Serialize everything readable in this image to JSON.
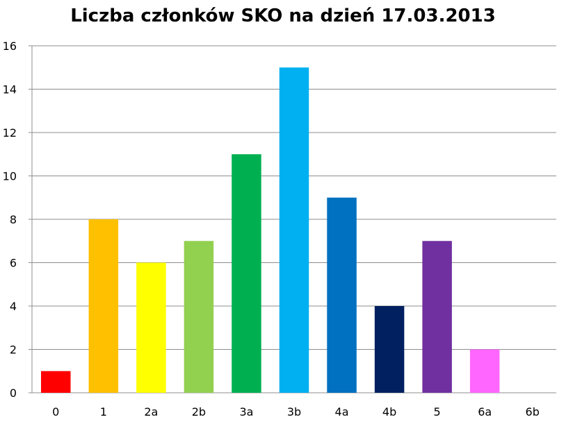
{
  "chart_data": {
    "type": "bar",
    "title": "Liczba członków SKO na dzień 17.03.2013",
    "xlabel": "",
    "ylabel": "",
    "categories": [
      "0",
      "1",
      "2a",
      "2b",
      "3a",
      "3b",
      "4a",
      "4b",
      "5",
      "6a",
      "6b"
    ],
    "values": [
      1,
      8,
      6,
      7,
      11,
      15,
      9,
      4,
      7,
      2,
      0
    ],
    "colors": [
      "#ff0000",
      "#ffc000",
      "#ffff00",
      "#92d050",
      "#00b050",
      "#00b0f0",
      "#0070c0",
      "#002060",
      "#7030a0",
      "#ff66ff",
      "#ffffff"
    ],
    "ylim": [
      0,
      16
    ],
    "yticks": [
      0,
      2,
      4,
      6,
      8,
      10,
      12,
      14,
      16
    ],
    "grid": true,
    "legend": "none",
    "gridline_color": "#8c8c8c",
    "axis_color": "#8c8c8c"
  }
}
